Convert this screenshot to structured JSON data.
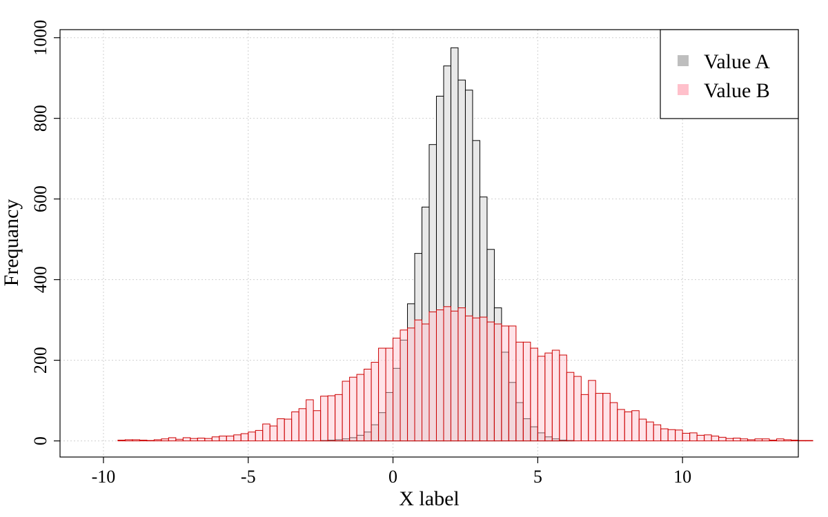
{
  "chart_data": {
    "type": "bar",
    "title": "",
    "xlabel": "X label",
    "ylabel": "Frequancy",
    "xlim": [
      -11.5,
      14
    ],
    "ylim": [
      -40,
      1020
    ],
    "xticks": [
      -10,
      -5,
      0,
      5,
      10
    ],
    "xtick_labels": [
      "-10",
      "-5",
      "0",
      "5",
      "10"
    ],
    "yticks": [
      0,
      200,
      400,
      600,
      800,
      1000
    ],
    "ytick_labels": [
      "0",
      "200",
      "400",
      "600",
      "800",
      "1000"
    ],
    "grid": true,
    "legend_position": "top-right",
    "bin_width": 0.25,
    "series": [
      {
        "name": "Value A",
        "color": "#bebebe",
        "fill": "#e8e8e8",
        "stroke": "#000000",
        "bin_start": -3.0,
        "values": [
          0,
          0,
          1,
          2,
          3,
          5,
          8,
          14,
          22,
          40,
          70,
          120,
          180,
          250,
          340,
          465,
          580,
          735,
          855,
          930,
          975,
          895,
          870,
          745,
          605,
          475,
          330,
          220,
          145,
          95,
          55,
          35,
          20,
          10,
          5,
          2,
          1
        ]
      },
      {
        "name": "Value B",
        "color": "#ffc0cb",
        "fill": "#ffc0cb",
        "fillOpacity": 0.45,
        "stroke": "#cc0000",
        "bin_start": -10.5,
        "values": [
          0,
          0,
          0,
          0,
          2,
          3,
          3,
          2,
          1,
          3,
          5,
          8,
          4,
          8,
          6,
          7,
          6,
          10,
          12,
          12,
          15,
          18,
          22,
          26,
          42,
          37,
          55,
          54,
          72,
          80,
          102,
          75,
          111,
          112,
          115,
          148,
          158,
          165,
          178,
          195,
          230,
          230,
          255,
          275,
          280,
          300,
          290,
          320,
          325,
          333,
          322,
          330,
          310,
          305,
          307,
          295,
          290,
          285,
          285,
          245,
          245,
          230,
          210,
          218,
          225,
          213,
          170,
          160,
          115,
          150,
          118,
          118,
          95,
          78,
          72,
          75,
          54,
          47,
          40,
          30,
          28,
          27,
          19,
          20,
          14,
          15,
          12,
          9,
          6,
          7,
          5,
          3,
          5,
          5,
          2,
          5,
          3,
          2,
          1,
          1,
          0,
          0,
          0,
          0,
          0,
          0,
          0,
          0,
          0,
          0
        ]
      }
    ]
  }
}
